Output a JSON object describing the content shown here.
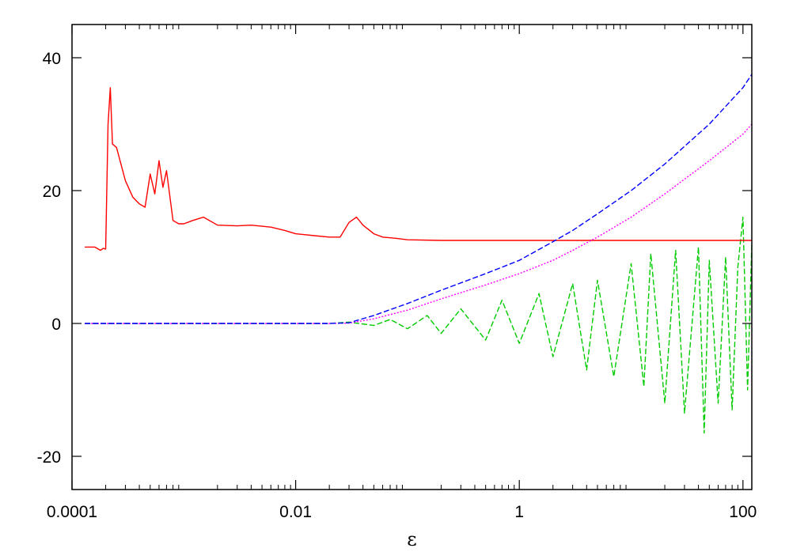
{
  "chart_data": {
    "type": "line",
    "title": "",
    "xlabel": "ε",
    "ylabel": "",
    "x_scale": "log",
    "xlim": [
      0.0001,
      120
    ],
    "ylim": [
      -25,
      45
    ],
    "x_ticks": [
      {
        "value": 0.0001,
        "label": "0.0001"
      },
      {
        "value": 0.01,
        "label": "0.01"
      },
      {
        "value": 1,
        "label": "1"
      },
      {
        "value": 100,
        "label": "100"
      }
    ],
    "y_ticks": [
      {
        "value": 40,
        "label": "40"
      },
      {
        "value": 20,
        "label": "20"
      },
      {
        "value": 0,
        "label": "0"
      },
      {
        "value": -20,
        "label": "-20"
      }
    ],
    "grid": false,
    "legend": "none",
    "series": [
      {
        "color": "#ff0000",
        "style": "solid",
        "x": [
          0.00013,
          0.00016,
          0.00018,
          0.00019,
          0.0002,
          0.00021,
          0.00022,
          0.00023,
          0.00025,
          0.0003,
          0.00035,
          0.0004,
          0.00045,
          0.0005,
          0.00055,
          0.0006,
          0.00065,
          0.0007,
          0.0008,
          0.0009,
          0.001,
          0.0012,
          0.0015,
          0.002,
          0.003,
          0.004,
          0.006,
          0.008,
          0.01,
          0.015,
          0.02,
          0.025,
          0.03,
          0.035,
          0.04,
          0.05,
          0.06,
          0.08,
          0.1,
          0.2,
          0.5,
          1,
          2,
          5,
          10,
          20,
          50,
          120
        ],
        "y": [
          11.5,
          11.5,
          11.0,
          11.3,
          11.2,
          30.0,
          35.5,
          27.0,
          26.5,
          21.5,
          19.0,
          18.0,
          17.5,
          22.5,
          19.5,
          24.5,
          20.5,
          23.0,
          15.5,
          15.0,
          15.0,
          15.5,
          16.0,
          14.8,
          14.7,
          14.8,
          14.5,
          14.0,
          13.5,
          13.2,
          13.0,
          13.0,
          15.2,
          16.0,
          14.8,
          13.5,
          13.0,
          12.8,
          12.6,
          12.5,
          12.5,
          12.5,
          12.5,
          12.5,
          12.5,
          12.5,
          12.5,
          12.5
        ]
      },
      {
        "color": "#0000ff",
        "style": "dashed",
        "x": [
          0.00013,
          0.001,
          0.01,
          0.02,
          0.03,
          0.05,
          0.1,
          0.2,
          0.5,
          1,
          2,
          3,
          5,
          10,
          20,
          50,
          100,
          120
        ],
        "y": [
          0,
          0,
          0,
          0,
          0.1,
          1.2,
          3.0,
          5.0,
          7.5,
          9.5,
          12.3,
          14.0,
          16.5,
          20.0,
          24.0,
          30.0,
          35.5,
          37.5
        ]
      },
      {
        "color": "#ff00ff",
        "style": "dotted",
        "x": [
          0.00013,
          0.001,
          0.01,
          0.02,
          0.03,
          0.05,
          0.1,
          0.2,
          0.5,
          1,
          2,
          3,
          5,
          10,
          20,
          50,
          100,
          120
        ],
        "y": [
          0,
          0,
          0,
          0,
          0.05,
          0.7,
          2.0,
          3.7,
          5.8,
          7.5,
          9.5,
          11.0,
          13.0,
          16.0,
          19.5,
          24.5,
          28.5,
          30.0
        ]
      },
      {
        "color": "#00cc00",
        "style": "dashed",
        "x": [
          0.00013,
          0.01,
          0.02,
          0.03,
          0.05,
          0.07,
          0.1,
          0.15,
          0.2,
          0.3,
          0.5,
          0.7,
          1,
          1.5,
          2,
          3,
          4,
          5,
          7,
          10,
          13,
          15,
          20,
          25,
          30,
          40,
          45,
          50,
          60,
          70,
          80,
          90,
          100,
          110,
          120
        ],
        "y": [
          0,
          0,
          0,
          0.2,
          -0.3,
          0.6,
          -0.8,
          1.2,
          -1.5,
          2.2,
          -2.5,
          3.5,
          -3.0,
          4.5,
          -5.0,
          6.0,
          -7.0,
          6.5,
          -8.0,
          9.0,
          -9.5,
          10.5,
          -12.0,
          11.0,
          -13.5,
          11.5,
          -16.5,
          9.5,
          -12.0,
          10.0,
          -13.0,
          8.5,
          16.0,
          -10.0,
          12.0
        ]
      }
    ]
  }
}
